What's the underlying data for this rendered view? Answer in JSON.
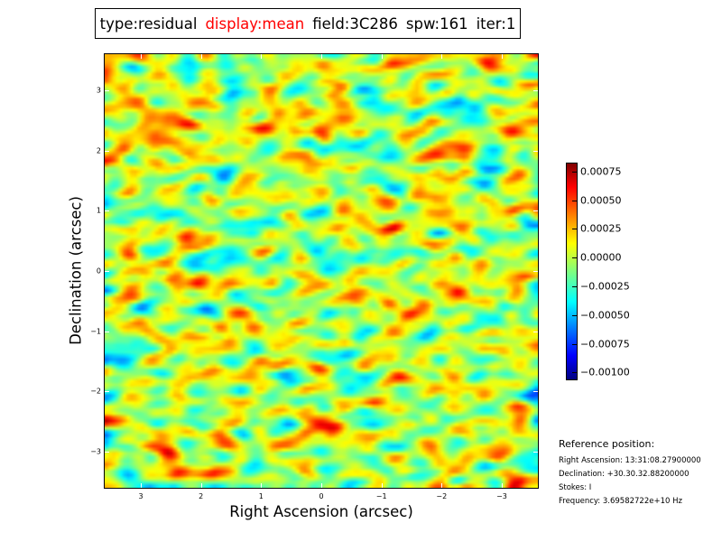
{
  "title": {
    "type": "type:residual",
    "display": "display:mean",
    "field": "field:3C286",
    "spw": "spw:161",
    "iter": "iter:1",
    "display_color": "#ff0000"
  },
  "reference": {
    "heading": "Reference position:",
    "ra": "Right Ascension: 13:31:08.27900000",
    "dec": "Declination: +30.30.32.88200000",
    "stokes": "Stokes: I",
    "frequency": "Frequency: 3.69582722e+10 Hz"
  },
  "chart_data": {
    "type": "heatmap",
    "colormap": "jet",
    "xlabel": "Right Ascension (arcsec)",
    "ylabel": "Declination (arcsec)",
    "xlim": [
      3.6,
      -3.6
    ],
    "ylim": [
      -3.6,
      3.6
    ],
    "xticks": [
      3,
      2,
      1,
      0,
      -1,
      -2,
      -3
    ],
    "xtick_labels": [
      "3",
      "2",
      "1",
      "0",
      "−1",
      "−2",
      "−3"
    ],
    "yticks": [
      3,
      2,
      1,
      0,
      -1,
      -2,
      -3
    ],
    "ytick_labels": [
      "3",
      "2",
      "1",
      "0",
      "−1",
      "−2",
      "−3"
    ],
    "colorbar": {
      "range": [
        -0.00106,
        0.00082
      ],
      "ticks": [
        0.00075,
        0.0005,
        0.00025,
        0.0,
        -0.00025,
        -0.0005,
        -0.00075,
        -0.001
      ],
      "tick_labels": [
        "0.00075",
        "0.00050",
        "0.00025",
        "0.00000",
        "−0.00025",
        "−0.00050",
        "−0.00075",
        "−0.00100"
      ]
    },
    "grid": false,
    "description_values": {
      "mean": 0.0,
      "approx_std": 0.0002
    }
  }
}
